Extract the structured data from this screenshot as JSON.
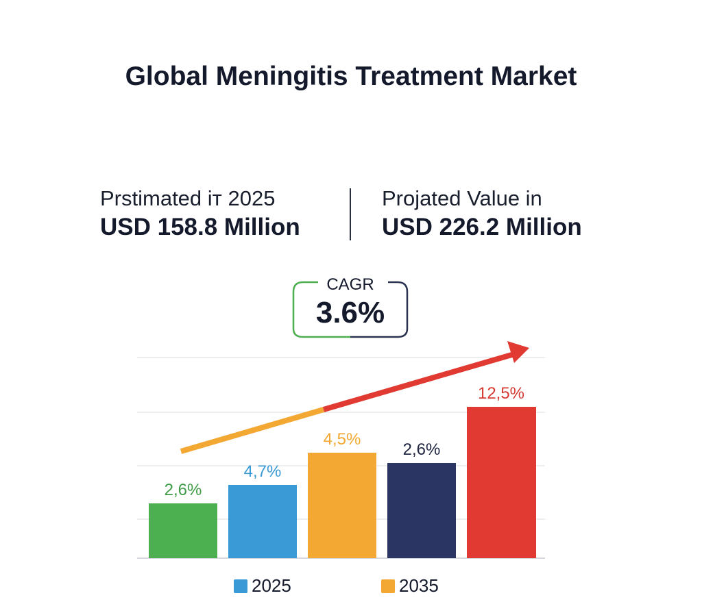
{
  "header": {
    "title": "Global Meningitis Treatment Market"
  },
  "stats": {
    "left": {
      "label": "Prstimated iт 2025",
      "value": "USD 158.8 Million"
    },
    "right": {
      "label": "Projated Value in",
      "value": "USD 226.2 Million"
    }
  },
  "cagr": {
    "label": "CAGR",
    "value": "3.6%",
    "colors": [
      "#4caf50",
      "#2b3350"
    ]
  },
  "chart_data": {
    "type": "bar",
    "title": "",
    "xlabel": "",
    "ylabel": "",
    "categories": [
      "",
      "",
      "",
      "",
      ""
    ],
    "values": [
      2.6,
      4.7,
      4.5,
      2.6,
      12.5
    ],
    "value_labels": [
      "2,6%",
      "4,7%",
      "4,5%",
      "2,6%",
      "12,5%"
    ],
    "bar_colors": [
      "#4caf50",
      "#3a9ad6",
      "#f2a832",
      "#2b3563",
      "#e03a33"
    ],
    "label_colors": [
      "#3d9c45",
      "#3a9ad6",
      "#f2a832",
      "#1f2540",
      "#d63a33"
    ],
    "grid": true,
    "trend_arrow": {
      "direction": "up",
      "colors": [
        "#f2a832",
        "#e03a33"
      ]
    },
    "legend": {
      "placement": "bottom",
      "entries": [
        {
          "label": "2025",
          "color": "#3a9ad6"
        },
        {
          "label": "2035",
          "color": "#f2a832"
        }
      ]
    }
  }
}
